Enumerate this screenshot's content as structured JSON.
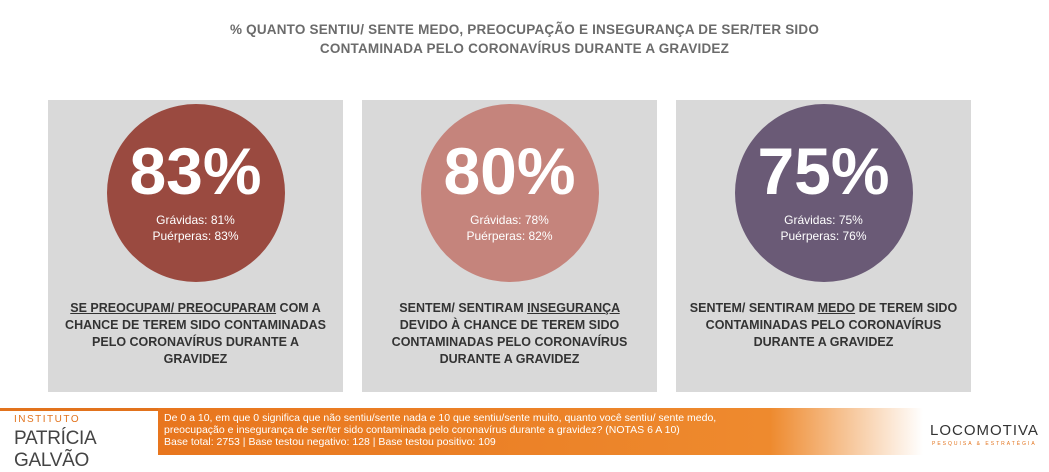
{
  "header": {
    "title": [
      "% QUANTO SENTIU/ SENTE MEDO, PREOCUPAÇÃO E INSEGURANÇA DE SER/TER SIDO",
      "CONTAMINADA PELO CORONAVÍRUS DURANTE A GRAVIDEZ"
    ]
  },
  "cards": [
    {
      "value": "83%",
      "color": "#9a4a40",
      "details": [
        "Grávidas: 81%",
        "Puérperas: 83%"
      ],
      "description": {
        "underlined": "SE PREOCUPAM/ PREOCUPARAM",
        "after": " COM A CHANCE DE TEREM SIDO CONTAMINADAS PELO CORONAVÍRUS DURANTE A GRAVIDEZ"
      }
    },
    {
      "value": "80%",
      "color": "#c5847c",
      "details": [
        "Grávidas: 78%",
        "Puérperas: 82%"
      ],
      "description": {
        "before": "SENTEM/ SENTIRAM ",
        "underlined": "INSEGURANÇA",
        "after": " DEVIDO À CHANCE DE TEREM SIDO CONTAMINADAS PELO CORONAVÍRUS DURANTE A GRAVIDEZ"
      }
    },
    {
      "value": "75%",
      "color": "#6a5a76",
      "details": [
        "Grávidas: 75%",
        "Puérperas: 76%"
      ],
      "description": {
        "before": "SENTEM/ SENTIRAM ",
        "underlined": "MEDO",
        "after": " DE TEREM SIDO CONTAMINADAS PELO CORONAVÍRUS DURANTE A GRAVIDEZ"
      }
    }
  ],
  "footer": {
    "logo": {
      "top": "INSTITUTO",
      "main": "PATRÍCIA GALVÃO"
    },
    "note": [
      "De 0 a 10, em que 0 significa que não sentiu/sente nada e 10 que sentiu/sente muito, quanto você sentiu/ sente medo,",
      "preocupação e insegurança de ser/ter sido contaminada pelo coronavírus durante a gravidez? (NOTAS 6 A 10)",
      "Base total: 2753 | Base testou negativo: 128 | Base testou positivo: 109"
    ],
    "brand": {
      "name": "LOCOMOTIVA",
      "tagline": "PESQUISA & ESTRATÉGIA"
    }
  }
}
